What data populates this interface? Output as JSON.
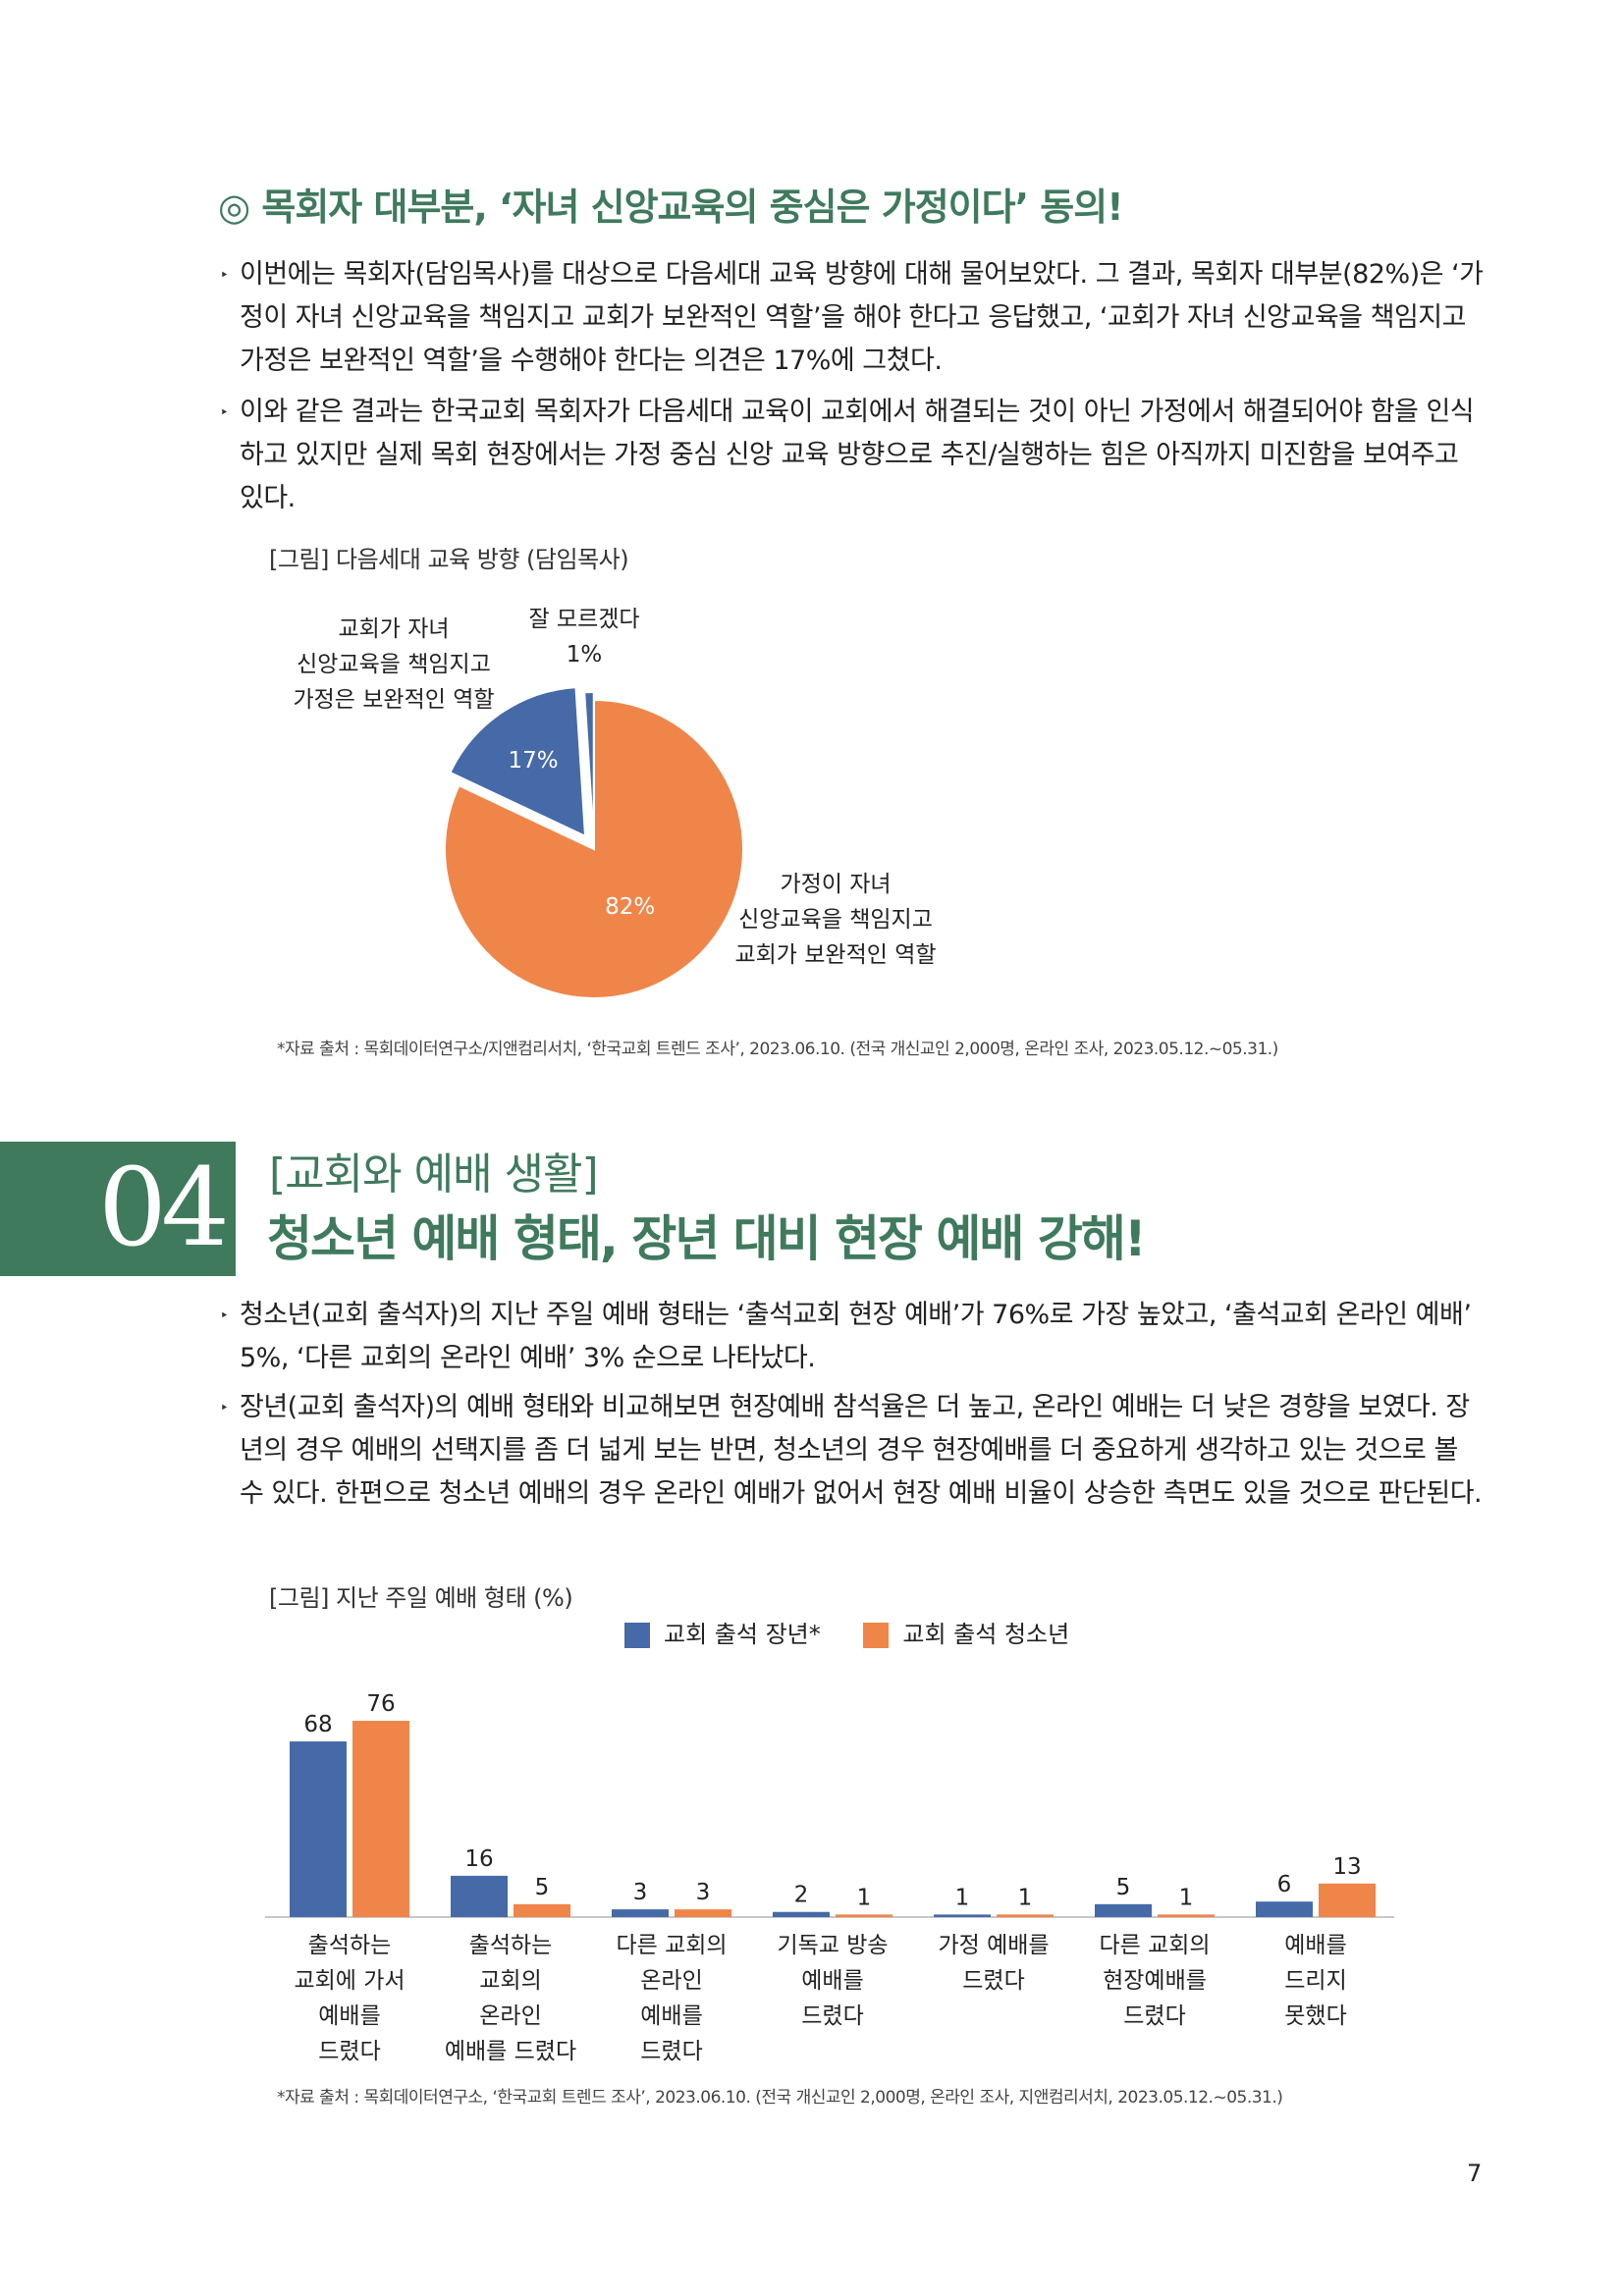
{
  "section1": {
    "heading": "◎ 목회자 대부분, ‘자녀 신앙교육의 중심은 가정이다’ 동의!",
    "bullets": [
      "이번에는 목회자(담임목사)를 대상으로 다음세대 교육 방향에 대해 물어보았다. 그 결과, 목회자 대부분(82%)은 ‘가정이 자녀 신앙교육을 책임지고 교회가 보완적인 역할’을 해야 한다고 응답했고, ‘교회가 자녀 신앙교육을 책임지고 가정은 보완적인 역할’을 수행해야 한다는 의견은 17%에 그쳤다.",
      "이와 같은 결과는 한국교회 목회자가 다음세대 교육이 교회에서 해결되는 것이 아닌 가정에서 해결되어야 함을 인식하고 있지만 실제 목회 현장에서는 가정 중심 신앙 교육 방향으로 추진/실행하는 힘은 아직까지 미진함을 보여주고 있다."
    ],
    "figure_title": "[그림] 다음세대 교육 방향 (담임목사)",
    "pie_labels": {
      "church": [
        "교회가 자녀",
        "신앙교육을 책임지고",
        "가정은 보완적인 역할"
      ],
      "dontknow": [
        "잘 모르겠다",
        "1%"
      ],
      "home": [
        "가정이 자녀",
        "신앙교육을 책임지고",
        "교회가 보완적인 역할"
      ],
      "church_pct": "17%",
      "home_pct": "82%"
    },
    "source": "*자료 출처 : 목회데이터연구소/지앤컴리서치, ‘한국교회 트렌드 조사’, 2023.06.10. (전국 개신교인 2,000명, 온라인 조사, 2023.05.12.~05.31.)"
  },
  "section2": {
    "number": "04",
    "subtitle": "[교회와 예배 생활]",
    "title": "청소년 예배 형태, 장년 대비 현장 예배 강해!",
    "bullets": [
      "청소년(교회 출석자)의 지난 주일 예배 형태는 ‘출석교회 현장 예배’가 76%로 가장 높았고, ‘출석교회 온라인 예배’ 5%, ‘다른 교회의 온라인 예배’ 3% 순으로 나타났다.",
      "장년(교회 출석자)의 예배 형태와 비교해보면 현장예배 참석율은 더 높고, 온라인 예배는 더 낮은 경향을 보였다. 장년의 경우 예배의 선택지를 좀 더 넓게 보는 반면, 청소년의 경우 현장예배를 더 중요하게 생각하고 있는 것으로 볼 수 있다. 한편으로 청소년 예배의 경우 온라인 예배가 없어서 현장 예배 비율이 상승한 측면도 있을 것으로 판단된다."
    ],
    "figure_title": "[그림] 지난 주일 예배 형태 (%)",
    "source": "*자료 출처 : 목회데이터연구소, ‘한국교회 트렌드 조사’, 2023.06.10. (전국 개신교인 2,000명, 온라인 조사, 지앤컴리서치, 2023.05.12.~05.31.)"
  },
  "page_number": "7",
  "colors": {
    "green": "#3f7a5d",
    "blue": "#466aa8",
    "orange": "#f0854a"
  },
  "chart_data": [
    {
      "type": "pie",
      "title": "[그림] 다음세대 교육 방향 (담임목사)",
      "categories": [
        "가정이 자녀 신앙교육을 책임지고 교회가 보완적인 역할",
        "교회가 자녀 신앙교육을 책임지고 가정은 보완적인 역할",
        "잘 모르겠다"
      ],
      "values": [
        82,
        17,
        1
      ],
      "colors": [
        "#f0854a",
        "#466aa8",
        "#466aa8"
      ]
    },
    {
      "type": "bar",
      "title": "[그림] 지난 주일 예배 형태 (%)",
      "categories": [
        [
          "출석하는",
          "교회에 가서",
          "예배를",
          "드렸다"
        ],
        [
          "출석하는",
          "교회의",
          "온라인",
          "예배를 드렸다"
        ],
        [
          "다른 교회의",
          "온라인",
          "예배를",
          "드렸다"
        ],
        [
          "기독교 방송",
          "예배를",
          "드렸다"
        ],
        [
          "가정 예배를",
          "드렸다"
        ],
        [
          "다른 교회의",
          "현장예배를",
          "드렸다"
        ],
        [
          "예배를",
          "드리지",
          "못했다"
        ]
      ],
      "series": [
        {
          "name": "교회 출석 장년*",
          "color": "#466aa8",
          "values": [
            68,
            16,
            3,
            2,
            1,
            5,
            6
          ]
        },
        {
          "name": "교회 출석 청소년",
          "color": "#f0854a",
          "values": [
            76,
            5,
            3,
            1,
            1,
            1,
            13
          ]
        }
      ],
      "ylim": [
        0,
        100
      ],
      "legend": "top"
    }
  ]
}
